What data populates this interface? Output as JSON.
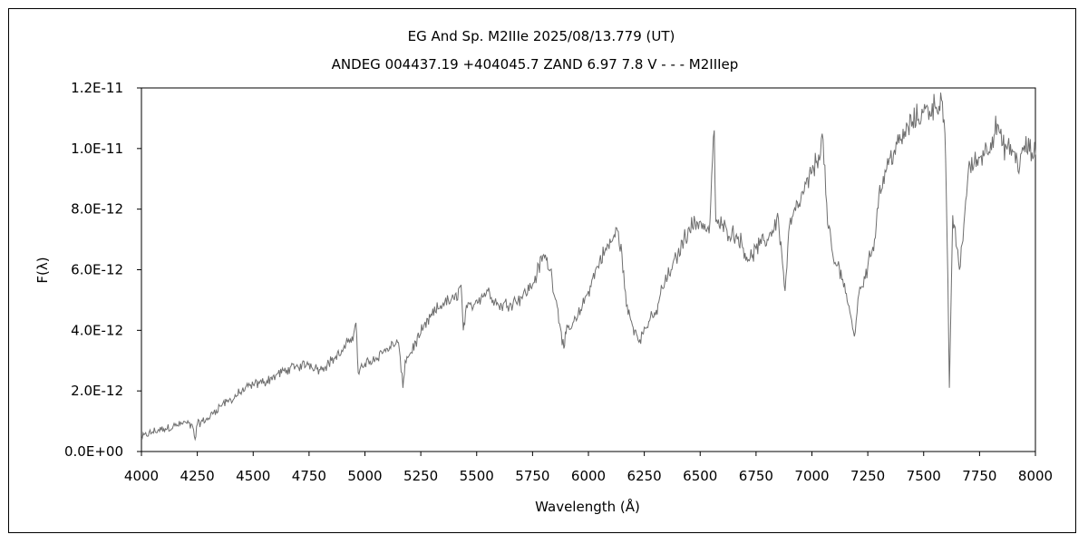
{
  "chart_data": {
    "type": "line",
    "title": "EG And    Sp. M2IIIe    2025/08/13.779 (UT)",
    "subtitle": "ANDEG 004437.19 +404045.7 ZAND 6.97 7.8 V - - - M2IIIep",
    "xlabel": "Wavelength (Å)",
    "ylabel": "F(λ)",
    "xlim": [
      4000,
      8000
    ],
    "ylim": [
      0,
      1.2e-11
    ],
    "x_ticks": [
      "4000",
      "4250",
      "4500",
      "4750",
      "5000",
      "5250",
      "5500",
      "5750",
      "6000",
      "6250",
      "6500",
      "6750",
      "7000",
      "7250",
      "7500",
      "7750",
      "8000"
    ],
    "y_ticks": [
      "0.0E+00",
      "2.0E-12",
      "4.0E-12",
      "6.0E-12",
      "8.0E-12",
      "1.0E-11",
      "1.2E-11"
    ],
    "grid": false,
    "line_color": "#6e6e6e",
    "series": [
      {
        "points": [
          [
            4000,
            4.5e-13
          ],
          [
            4050,
            6.5e-13
          ],
          [
            4100,
            7.5e-13
          ],
          [
            4150,
            8.5e-13
          ],
          [
            4200,
            9.5e-13
          ],
          [
            4230,
            8e-13
          ],
          [
            4240,
            4e-13
          ],
          [
            4250,
            9e-13
          ],
          [
            4300,
            1.1e-12
          ],
          [
            4350,
            1.5e-12
          ],
          [
            4400,
            1.7e-12
          ],
          [
            4450,
            2e-12
          ],
          [
            4500,
            2.2e-12
          ],
          [
            4550,
            2.3e-12
          ],
          [
            4600,
            2.5e-12
          ],
          [
            4650,
            2.7e-12
          ],
          [
            4700,
            2.8e-12
          ],
          [
            4750,
            2.9e-12
          ],
          [
            4800,
            2.7e-12
          ],
          [
            4850,
            3e-12
          ],
          [
            4900,
            3.3e-12
          ],
          [
            4950,
            3.9e-12
          ],
          [
            4960,
            4.25e-12
          ],
          [
            4970,
            2.6e-12
          ],
          [
            5000,
            2.9e-12
          ],
          [
            5050,
            3.1e-12
          ],
          [
            5100,
            3.4e-12
          ],
          [
            5150,
            3.6e-12
          ],
          [
            5170,
            2.1e-12
          ],
          [
            5180,
            3e-12
          ],
          [
            5200,
            3.2e-12
          ],
          [
            5250,
            3.9e-12
          ],
          [
            5300,
            4.5e-12
          ],
          [
            5350,
            4.9e-12
          ],
          [
            5400,
            5e-12
          ],
          [
            5430,
            5.5e-12
          ],
          [
            5440,
            4e-12
          ],
          [
            5450,
            4.6e-12
          ],
          [
            5500,
            5e-12
          ],
          [
            5550,
            5.3e-12
          ],
          [
            5600,
            4.8e-12
          ],
          [
            5650,
            4.9e-12
          ],
          [
            5700,
            5.1e-12
          ],
          [
            5750,
            5.5e-12
          ],
          [
            5800,
            6.5e-12
          ],
          [
            5830,
            6e-12
          ],
          [
            5860,
            4.8e-12
          ],
          [
            5890,
            3.4e-12
          ],
          [
            5900,
            3.9e-12
          ],
          [
            5950,
            4.4e-12
          ],
          [
            6000,
            5.3e-12
          ],
          [
            6050,
            6.3e-12
          ],
          [
            6100,
            6.9e-12
          ],
          [
            6130,
            7.3e-12
          ],
          [
            6150,
            6.5e-12
          ],
          [
            6170,
            4.8e-12
          ],
          [
            6200,
            4.1e-12
          ],
          [
            6230,
            3.7e-12
          ],
          [
            6270,
            4.3e-12
          ],
          [
            6300,
            4.5e-12
          ],
          [
            6330,
            5.4e-12
          ],
          [
            6370,
            6e-12
          ],
          [
            6400,
            6.5e-12
          ],
          [
            6450,
            7.4e-12
          ],
          [
            6500,
            7.6e-12
          ],
          [
            6540,
            7.2e-12
          ],
          [
            6563,
            1.06e-11
          ],
          [
            6570,
            7.6e-12
          ],
          [
            6620,
            7.3e-12
          ],
          [
            6670,
            7.1e-12
          ],
          [
            6720,
            6.3e-12
          ],
          [
            6750,
            6.7e-12
          ],
          [
            6800,
            7e-12
          ],
          [
            6850,
            7.7e-12
          ],
          [
            6880,
            5.3e-12
          ],
          [
            6900,
            7.5e-12
          ],
          [
            6950,
            8.3e-12
          ],
          [
            7000,
            9.2e-12
          ],
          [
            7030,
            9.8e-12
          ],
          [
            7050,
            1.03e-11
          ],
          [
            7070,
            7.5e-12
          ],
          [
            7100,
            6.2e-12
          ],
          [
            7130,
            6e-12
          ],
          [
            7170,
            4.6e-12
          ],
          [
            7190,
            3.8e-12
          ],
          [
            7210,
            5.2e-12
          ],
          [
            7250,
            6.1e-12
          ],
          [
            7280,
            7e-12
          ],
          [
            7300,
            8.5e-12
          ],
          [
            7350,
            9.7e-12
          ],
          [
            7400,
            1.03e-11
          ],
          [
            7450,
            1.09e-11
          ],
          [
            7500,
            1.12e-11
          ],
          [
            7550,
            1.14e-11
          ],
          [
            7580,
            1.16e-11
          ],
          [
            7595,
            1.05e-11
          ],
          [
            7605,
            7e-12
          ],
          [
            7615,
            2.1e-12
          ],
          [
            7630,
            7.8e-12
          ],
          [
            7660,
            6e-12
          ],
          [
            7680,
            7.5e-12
          ],
          [
            7700,
            9.3e-12
          ],
          [
            7750,
            9.7e-12
          ],
          [
            7800,
            1.02e-11
          ],
          [
            7830,
            1.08e-11
          ],
          [
            7850,
            1.01e-11
          ],
          [
            7900,
            9.9e-12
          ],
          [
            7930,
            9.4e-12
          ],
          [
            7950,
            1.01e-11
          ],
          [
            8000,
            9.8e-12
          ]
        ]
      }
    ]
  }
}
